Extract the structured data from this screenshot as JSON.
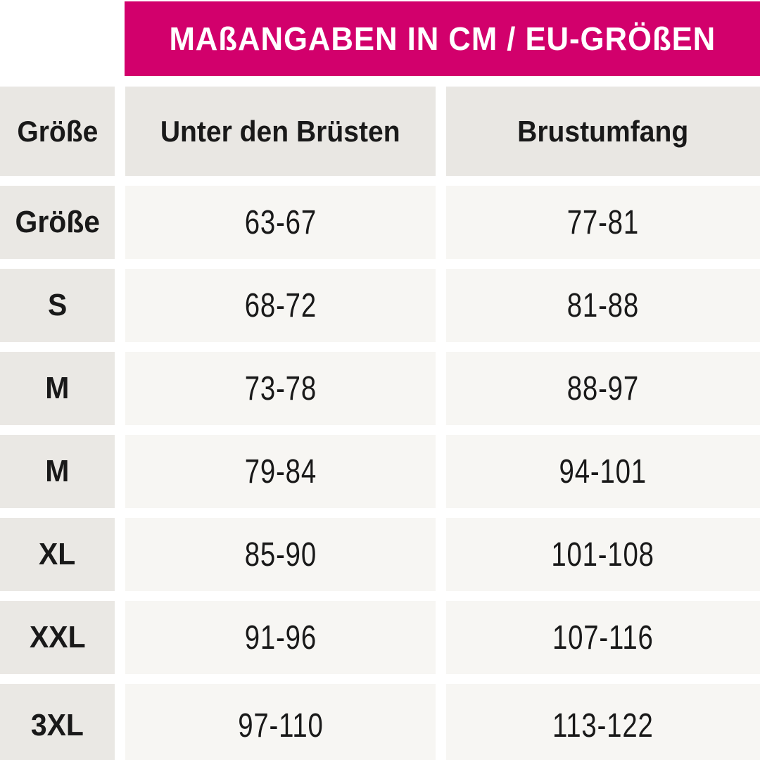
{
  "banner": {
    "title": "MAßANGABEN IN CM / EU-GRÖßEN"
  },
  "chart_data": {
    "type": "table",
    "title": "MAßANGABEN IN CM / EU-GRÖßEN",
    "columns": [
      "Größe",
      "Unter den Brüsten",
      "Brustumfang"
    ],
    "rows": [
      [
        "Größe",
        "63-67",
        "77-81"
      ],
      [
        "S",
        "68-72",
        "81-88"
      ],
      [
        "M",
        "73-78",
        "88-97"
      ],
      [
        "M",
        "79-84",
        "94-101"
      ],
      [
        "XL",
        "85-90",
        "101-108"
      ],
      [
        "XXL",
        "91-96",
        "107-116"
      ],
      [
        "3XL",
        "97-110",
        "113-122"
      ]
    ]
  },
  "colors": {
    "banner_bg": "#d2006c",
    "banner_text": "#ffffff",
    "header_cell_bg": "#e9e7e3",
    "label_cell_bg": "#eae8e4",
    "data_cell_bg": "#f7f6f3",
    "text": "#191919",
    "gap": "#ffffff"
  }
}
